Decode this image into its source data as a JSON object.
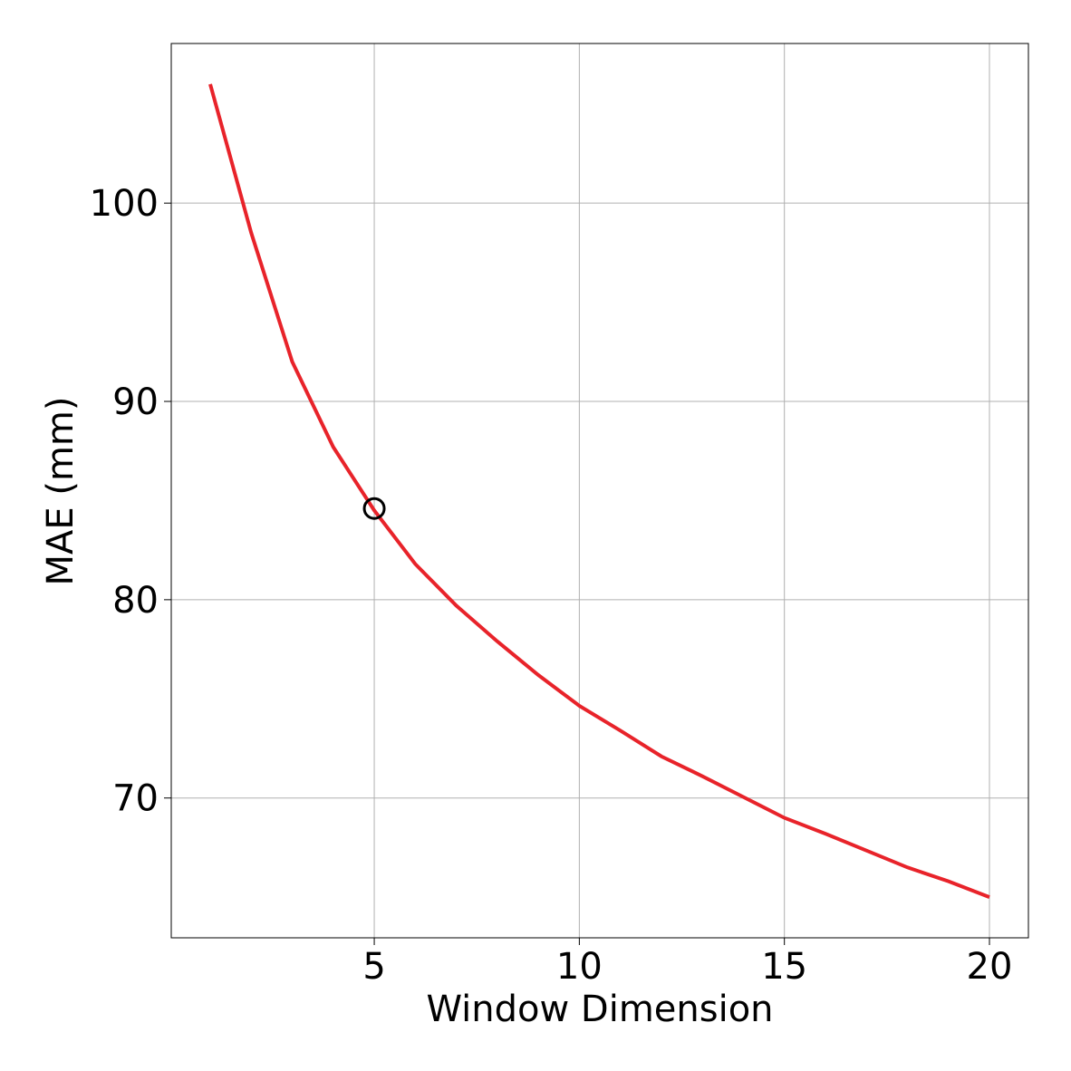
{
  "chart_data": {
    "type": "line",
    "xlabel": "Window Dimension",
    "ylabel": "MAE (mm)",
    "x": [
      1,
      2,
      3,
      4,
      5,
      6,
      7,
      8,
      9,
      10,
      11,
      12,
      13,
      14,
      15,
      16,
      17,
      18,
      19,
      20
    ],
    "series": [
      {
        "color": "#e8232a",
        "values": [
          106,
          98.5,
          92.0,
          87.7,
          84.5,
          81.8,
          79.7,
          77.9,
          76.2,
          74.65,
          73.4,
          72.1,
          71.1,
          70.05,
          69.0,
          68.2,
          67.35,
          66.5,
          65.8,
          65.0
        ]
      }
    ],
    "highlight": {
      "x": 5,
      "y": 84.6,
      "color": "#000000"
    },
    "xlim": [
      0.05,
      20.95
    ],
    "ylim": [
      62.95,
      108.05
    ],
    "xticks": [
      5,
      10,
      15,
      20
    ],
    "yticks": [
      70,
      80,
      90,
      100
    ],
    "grid": true
  }
}
